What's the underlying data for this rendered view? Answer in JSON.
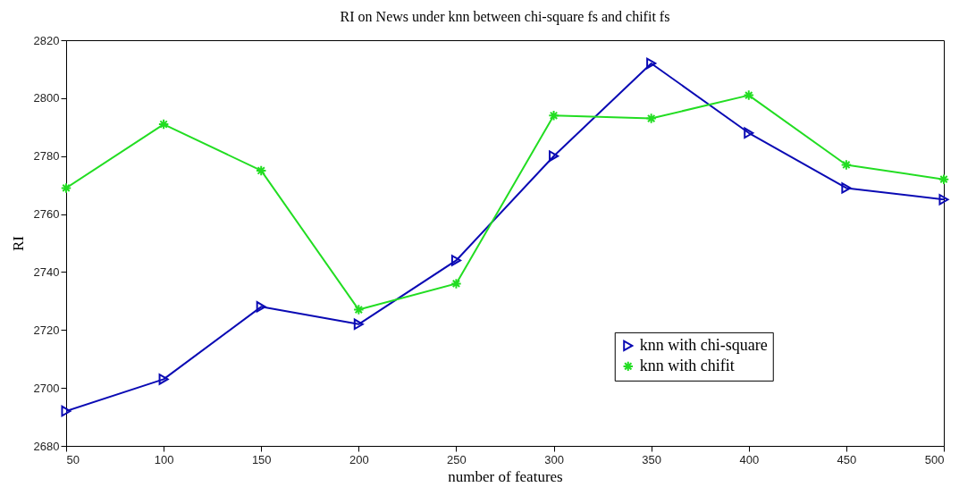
{
  "chart_data": {
    "type": "line",
    "title": "RI on News under knn between chi-square fs and chifit fs",
    "xlabel": "number of features",
    "ylabel": "RI",
    "x": [
      50,
      100,
      150,
      200,
      250,
      300,
      350,
      400,
      450,
      500
    ],
    "series": [
      {
        "name": "knn with chi-square",
        "color": "#0a0ab4",
        "marker": "triangle",
        "values": [
          2692,
          2703,
          2728,
          2722,
          2744,
          2780,
          2812,
          2788,
          2769,
          2765
        ]
      },
      {
        "name": "knn with chifit",
        "color": "#22dd22",
        "marker": "cross",
        "values": [
          2769,
          2791,
          2775,
          2727,
          2736,
          2794,
          2793,
          2801,
          2777,
          2772
        ]
      }
    ],
    "xlim": [
      50,
      500
    ],
    "xticks": [
      50,
      100,
      150,
      200,
      250,
      300,
      350,
      400,
      450,
      500
    ],
    "ylim": [
      2680,
      2820
    ],
    "yticks": [
      2680,
      2700,
      2720,
      2740,
      2760,
      2780,
      2800,
      2820
    ],
    "grid": false,
    "legend": "bottom right",
    "line_style": "solid"
  }
}
